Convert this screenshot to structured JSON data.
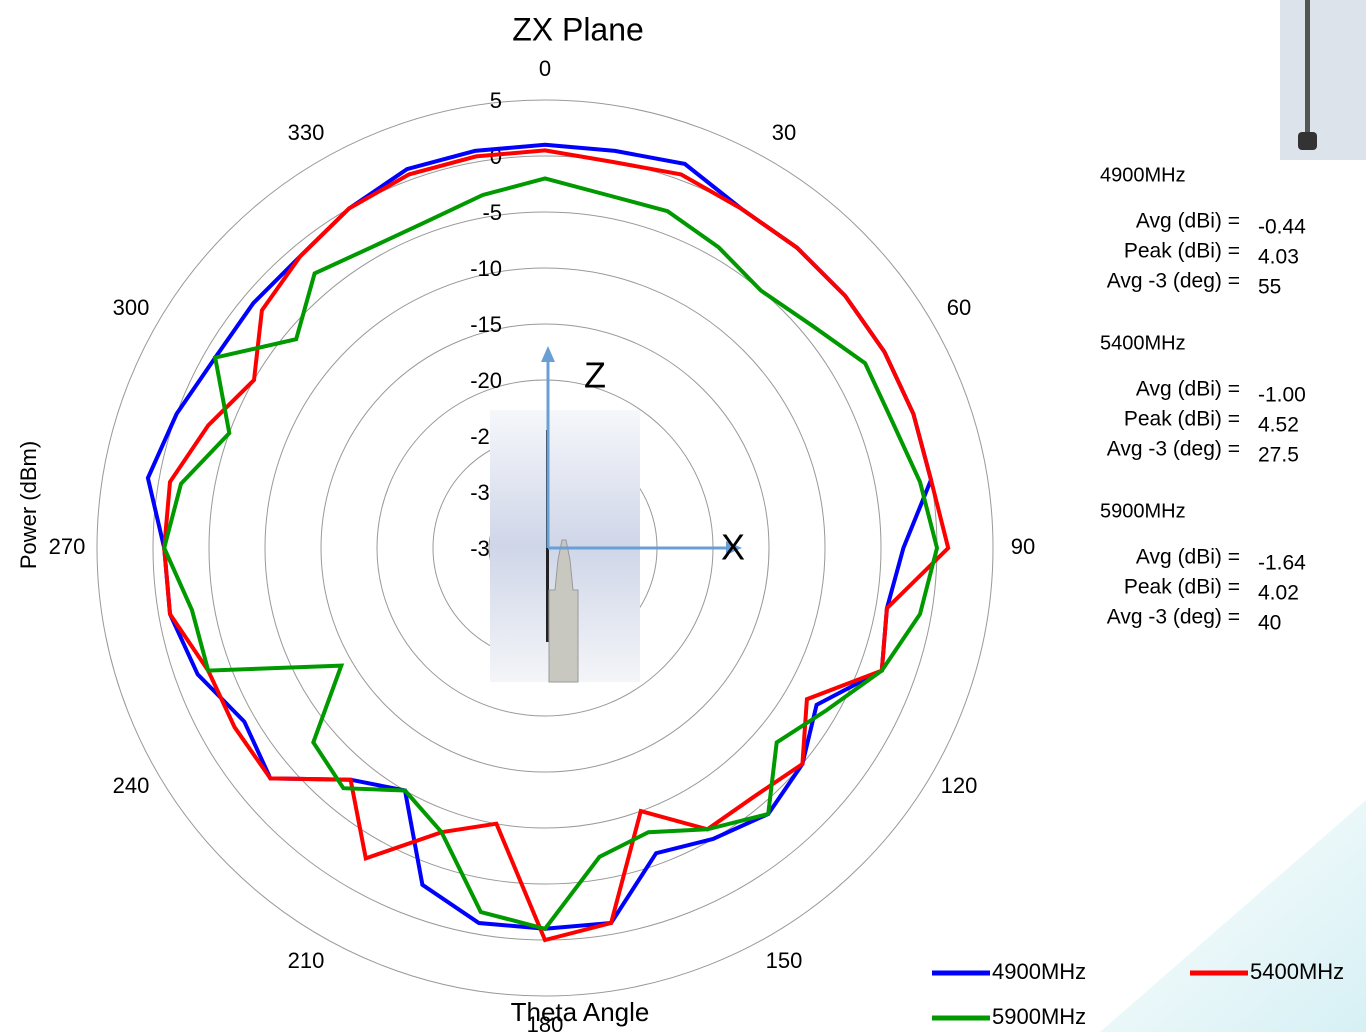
{
  "chart_data": {
    "type": "polar",
    "title": "ZX Plane",
    "x_label": "Theta  Angle",
    "y_label": "Power (dBm)",
    "x": [
      0,
      10,
      20,
      30,
      40,
      50,
      60,
      70,
      80,
      90,
      100,
      110,
      120,
      130,
      140,
      150,
      160,
      170,
      180,
      190,
      200,
      210,
      220,
      230,
      240,
      250,
      260,
      270,
      280,
      290,
      300,
      310,
      320,
      330,
      340,
      350
    ],
    "rlim": [
      -35,
      5
    ],
    "rticks": [
      5,
      0,
      -5,
      -10,
      -15,
      -20,
      -25,
      -30,
      -35
    ],
    "thetaticks": [
      0,
      30,
      60,
      90,
      120,
      150,
      180,
      210,
      240,
      270,
      300,
      330
    ],
    "series": [
      {
        "name": "4900MHz",
        "color": "#0000ff",
        "values": [
          1,
          1,
          1.5,
          0,
          0,
          0,
          0,
          0,
          0,
          -3,
          -4,
          -3,
          -7,
          -5,
          -4,
          -5,
          -6,
          -1,
          -1,
          -1,
          -3,
          -10,
          -8,
          -3,
          -4,
          -2,
          -1,
          -1,
          1,
          0,
          -1,
          -1,
          -1,
          0,
          1,
          1
        ]
      },
      {
        "name": "5400MHz",
        "color": "#ff0000",
        "values": [
          0.5,
          0,
          0.5,
          0,
          0,
          0,
          0,
          0,
          0,
          1,
          -4,
          -3,
          -8,
          -5,
          -6,
          -6,
          -10,
          -1,
          0,
          -10,
          -8,
          -3,
          -8,
          -3,
          -3,
          -3,
          -1,
          -1,
          -1,
          -3,
          -5,
          -2,
          -1,
          0,
          0.5,
          0.5
        ]
      },
      {
        "name": "5900MHz",
        "color": "#009900",
        "values": [
          -2,
          -3,
          -3,
          -4,
          -5,
          -4,
          -2,
          -2,
          -1,
          0,
          -1,
          -3,
          -6,
          -8,
          -4,
          -6,
          -8,
          -7,
          -1,
          -2,
          -8,
          -10,
          -7,
          -8,
          -14,
          -3,
          -3,
          -1,
          -2,
          -5,
          -1,
          -6,
          -3,
          -4,
          -4,
          -3
        ]
      }
    ],
    "axis_markers": {
      "z": "Z",
      "x": "X"
    },
    "stats": [
      {
        "band": "4900MHz",
        "rows": [
          {
            "label": "Avg (dBi) =",
            "value": -0.44
          },
          {
            "label": "Peak (dBi) =",
            "value": 4.03
          },
          {
            "label": "Avg -3 (deg) =",
            "value": 55
          }
        ]
      },
      {
        "band": "5400MHz",
        "rows": [
          {
            "label": "Avg (dBi) =",
            "value": {
              "value": -1.0,
              "label": "-1.00"
            }
          },
          {
            "label": "Peak (dBi) =",
            "value": 4.52
          },
          {
            "label": "Avg -3 (deg) =",
            "value": 27.5
          }
        ]
      },
      {
        "band": "5900MHz",
        "rows": [
          {
            "label": "Avg (dBi) =",
            "value": -1.64
          },
          {
            "label": "Peak (dBi) =",
            "value": 4.02
          },
          {
            "label": "Avg -3 (deg) =",
            "value": 40
          }
        ]
      }
    ]
  }
}
